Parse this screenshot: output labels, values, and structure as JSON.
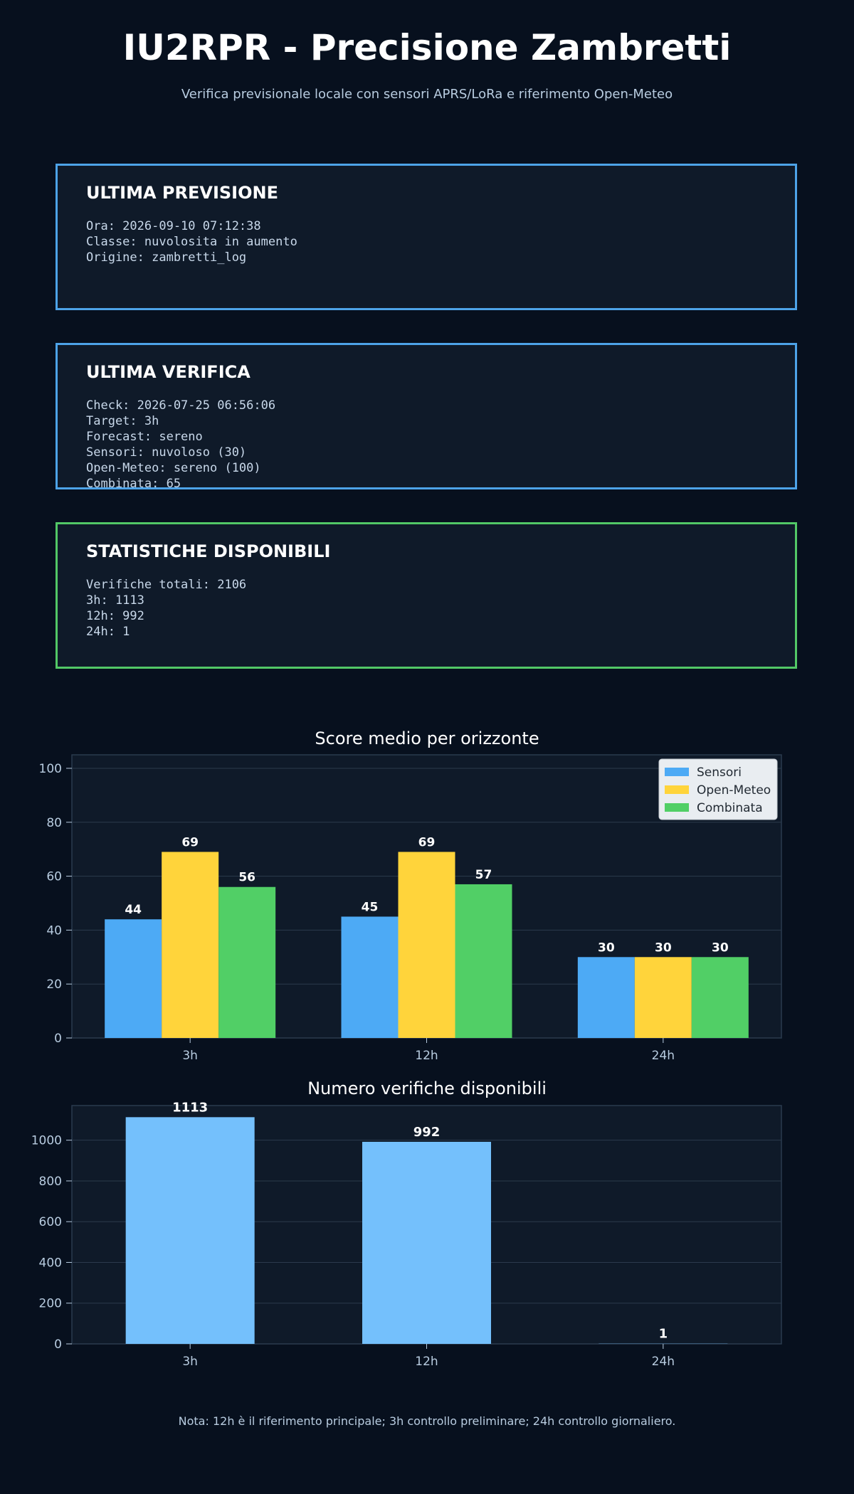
{
  "header": {
    "title": "IU2RPR - Precisione Zambretti",
    "subtitle": "Verifica previsionale locale con sensori APRS/LoRa e riferimento Open-Meteo"
  },
  "panels": [
    {
      "title": "ULTIMA PREVISIONE",
      "lines": [
        "Ora: 2026-09-10 07:12:38",
        "Classe: nuvolosita in aumento",
        "Origine: zambretti_log"
      ]
    },
    {
      "title": "ULTIMA VERIFICA",
      "lines": [
        "Check: 2026-07-25 06:56:06",
        "Target: 3h",
        "Forecast: sereno",
        "Sensori: nuvoloso (30)",
        "Open-Meteo: sereno (100)",
        "Combinata: 65"
      ]
    },
    {
      "title": "STATISTICHE DISPONIBILI",
      "lines": [
        "Verifiche totali: 2106",
        "3h: 1113",
        "12h: 992",
        "24h: 1"
      ]
    }
  ],
  "colors": {
    "background": "#07101e",
    "panel": "#0f1a29",
    "panel_border_blue": "#4da3e8",
    "panel_border_green": "#52c866",
    "sensori": "#4daaf5",
    "open_meteo": "#ffd43b",
    "combinata": "#51cf66",
    "count_bar": "#74c0fc"
  },
  "chart_data": [
    {
      "type": "bar",
      "title": "Score medio per orizzonte",
      "categories": [
        "3h",
        "12h",
        "24h"
      ],
      "series": [
        {
          "name": "Sensori",
          "values": [
            44,
            45,
            30
          ]
        },
        {
          "name": "Open-Meteo",
          "values": [
            69,
            69,
            30
          ]
        },
        {
          "name": "Combinata",
          "values": [
            56,
            57,
            30
          ]
        }
      ],
      "ylim": [
        0,
        105
      ],
      "yticks": [
        0,
        20,
        40,
        60,
        80,
        100
      ],
      "legend": "top-right",
      "grid": true
    },
    {
      "type": "bar",
      "title": "Numero verifiche disponibili",
      "categories": [
        "3h",
        "12h",
        "24h"
      ],
      "values": [
        1113,
        992,
        1
      ],
      "ylim": [
        0,
        1170
      ],
      "yticks": [
        0,
        200,
        400,
        600,
        800,
        1000
      ],
      "grid": true
    }
  ],
  "footer": {
    "note": "Nota: 12h è il riferimento principale; 3h controllo preliminare; 24h controllo giornaliero."
  }
}
